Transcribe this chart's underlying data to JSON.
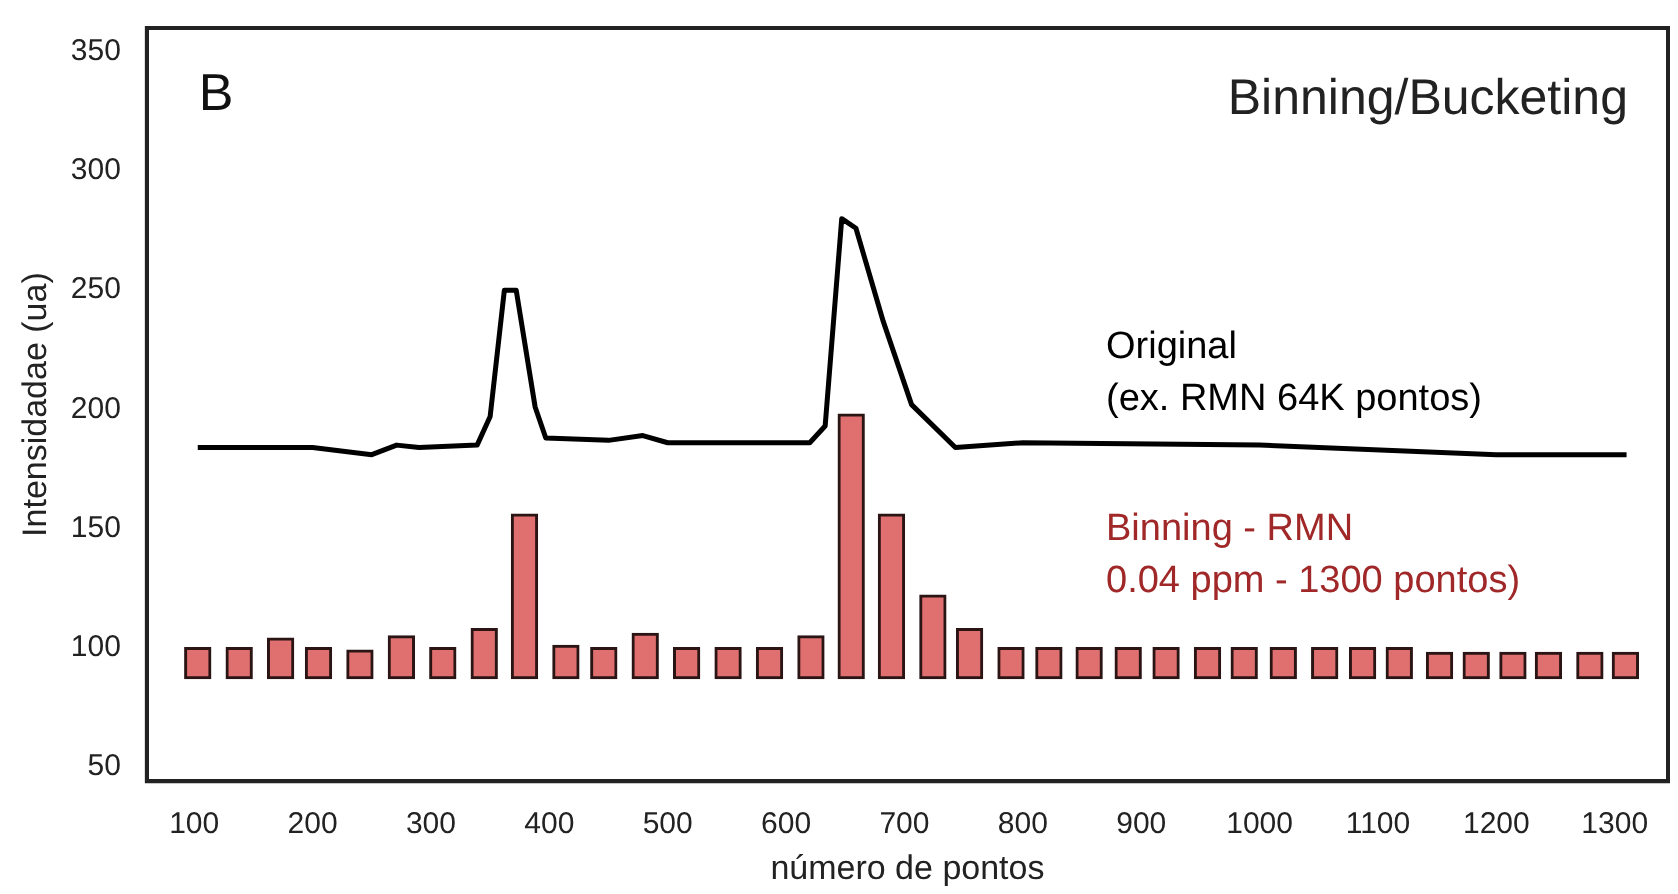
{
  "chart_data": {
    "type": "line",
    "title": "Binning/Bucketing",
    "xlabel": "número de pontos",
    "ylabel": "Intensidadae (ua)",
    "annotations": [
      "B"
    ],
    "xlim": [
      60,
      1345
    ],
    "ylim": [
      44,
      360
    ],
    "xticks": [
      100,
      200,
      300,
      400,
      500,
      600,
      700,
      800,
      900,
      1000,
      1100,
      1200,
      1300
    ],
    "yticks": [
      50,
      100,
      150,
      200,
      250,
      300,
      350
    ],
    "series": [
      {
        "name": "Binning - RMN\n0.04 ppm - 1300 pontos)",
        "type": "bar",
        "color": "#e07070",
        "x": [
          103,
          138,
          173,
          205,
          240,
          275,
          310,
          345,
          379,
          414,
          446,
          481,
          516,
          551,
          586,
          621,
          655,
          689,
          724,
          755,
          790,
          822,
          856,
          889,
          921,
          956,
          987,
          1020,
          1055,
          1087,
          1118,
          1152,
          1183,
          1214,
          1244,
          1279,
          1309
        ],
        "base": [
          87,
          87,
          87,
          87,
          87,
          87,
          87,
          87,
          87,
          87,
          87,
          87,
          87,
          87,
          87,
          87,
          87,
          87,
          87,
          87,
          87,
          87,
          87,
          87,
          87,
          87,
          87,
          87,
          87,
          87,
          87,
          87,
          87,
          87,
          87,
          87,
          87
        ],
        "values": [
          13,
          13,
          17,
          13,
          12,
          18,
          13,
          21,
          69,
          14,
          13,
          19,
          13,
          13,
          13,
          18,
          111,
          69,
          35,
          21,
          13,
          13,
          13,
          13,
          13,
          13,
          13,
          13,
          13,
          13,
          13,
          11,
          11,
          11,
          11,
          11,
          11
        ]
      },
      {
        "name": "Original\n(ex. RMN 64K pontos)",
        "color": "#000000",
        "x": [
          103,
          200,
          250,
          271,
          290,
          339,
          350,
          362,
          372,
          388,
          397,
          450,
          479,
          500,
          600,
          620,
          633,
          647,
          659,
          682,
          706,
          743,
          800,
          1000,
          1200,
          1310
        ],
        "values": [
          184,
          184,
          181,
          185,
          184,
          185,
          197,
          250,
          250,
          201,
          188,
          187,
          189,
          186,
          186,
          186,
          193,
          280,
          276,
          237,
          202,
          184,
          186,
          185,
          181,
          181
        ]
      }
    ]
  }
}
